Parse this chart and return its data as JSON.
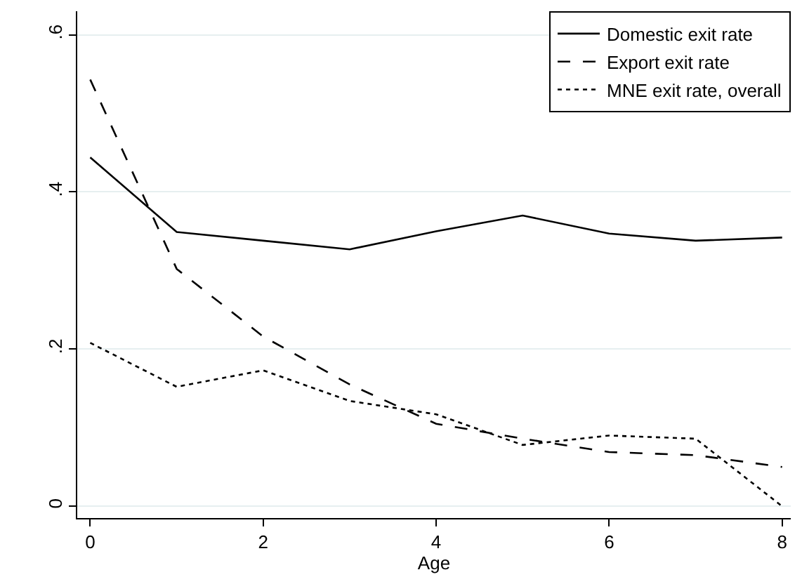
{
  "chart_data": {
    "type": "line",
    "xlabel": "Age",
    "x": [
      0,
      1,
      2,
      3,
      4,
      5,
      6,
      7,
      8
    ],
    "series": [
      {
        "name": "Domestic exit rate",
        "color": "#000000",
        "line_style": "solid",
        "values": [
          0.444,
          0.349,
          0.338,
          0.327,
          0.35,
          0.37,
          0.347,
          0.338,
          0.342
        ]
      },
      {
        "name": "Export exit rate",
        "color": "#000000",
        "line_style": "dashed",
        "values": [
          0.543,
          0.302,
          0.216,
          0.155,
          0.105,
          0.086,
          0.069,
          0.065,
          0.05
        ]
      },
      {
        "name": "MNE exit rate, overall",
        "color": "#000000",
        "line_style": "dotted",
        "values": [
          0.208,
          0.152,
          0.173,
          0.134,
          0.117,
          0.078,
          0.09,
          0.086,
          0.0
        ]
      }
    ],
    "xlim": [
      -0.15,
      8.1
    ],
    "ylim": [
      -0.015,
      0.63
    ],
    "xticks": [
      0,
      2,
      4,
      6,
      8
    ],
    "yticks": [
      {
        "value": 0,
        "label": "0"
      },
      {
        "value": 0.2,
        "label": ".2"
      },
      {
        "value": 0.4,
        "label": ".4"
      },
      {
        "value": 0.6,
        "label": ".6"
      }
    ],
    "grid": "y",
    "legend": "top right",
    "marker": "none"
  }
}
